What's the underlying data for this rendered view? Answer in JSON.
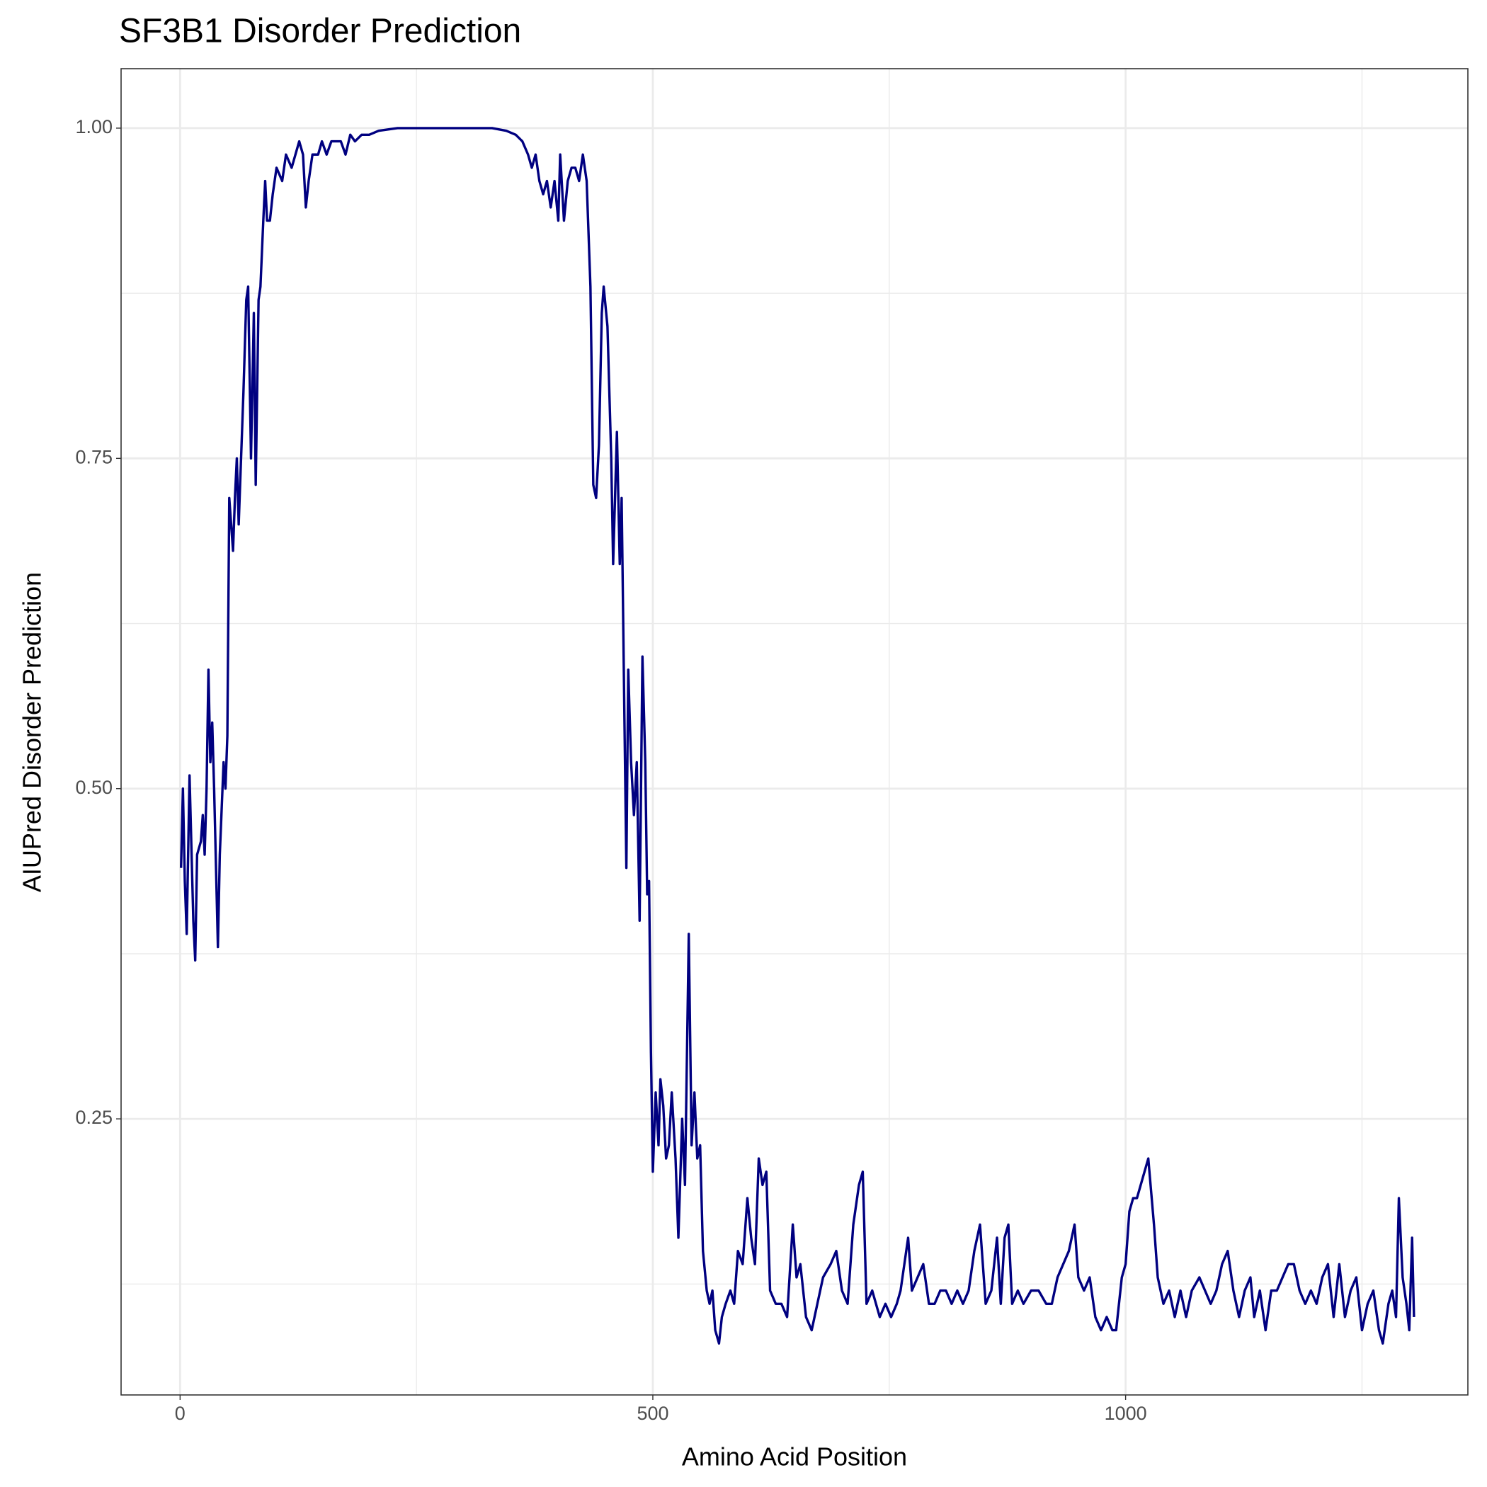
{
  "chart_data": {
    "type": "line",
    "title": "SF3B1 Disorder Prediction",
    "x_label": "Amino Acid Position",
    "y_label": "AIUPred Disorder Prediction",
    "color": "#000080",
    "grid": true,
    "minor_grid": true,
    "xlim": [
      -62.4,
      1362
    ],
    "ylim": [
      0.041,
      1.045
    ],
    "xticks": [
      0,
      500,
      1000
    ],
    "yticks": [
      {
        "value": 0.25,
        "label": "0.25"
      },
      {
        "value": 0.5,
        "label": "0.50"
      },
      {
        "value": 0.75,
        "label": "0.75"
      },
      {
        "value": 1,
        "label": "1.00"
      }
    ],
    "x": [
      1,
      3,
      5,
      7,
      10,
      14,
      16,
      18,
      22,
      24,
      26,
      28,
      30,
      32,
      34,
      36,
      40,
      42,
      46,
      48,
      50,
      52,
      54,
      56,
      58,
      60,
      62,
      64,
      67,
      70,
      72,
      75,
      78,
      80,
      83,
      85,
      88,
      90,
      92,
      95,
      98,
      102,
      108,
      112,
      118,
      122,
      126,
      130,
      133,
      136,
      140,
      146,
      150,
      155,
      160,
      166,
      170,
      175,
      180,
      185,
      192,
      200,
      210,
      230,
      260,
      300,
      330,
      345,
      355,
      362,
      368,
      372,
      376,
      380,
      384,
      388,
      392,
      396,
      400,
      402,
      406,
      410,
      414,
      418,
      422,
      426,
      430,
      434,
      437,
      440,
      443,
      446,
      448,
      452,
      456,
      458,
      462,
      465,
      467,
      470,
      472,
      474,
      477,
      480,
      483,
      486,
      489,
      492,
      494,
      496,
      498,
      500,
      503,
      506,
      508,
      511,
      514,
      517,
      520,
      524,
      527,
      531,
      534,
      538,
      541,
      544,
      547,
      550,
      553,
      557,
      560,
      563,
      566,
      570,
      573,
      577,
      582,
      586,
      590,
      595,
      600,
      604,
      608,
      612,
      616,
      620,
      624,
      630,
      636,
      642,
      648,
      652,
      656,
      662,
      668,
      674,
      680,
      688,
      694,
      700,
      706,
      712,
      718,
      722,
      726,
      732,
      740,
      746,
      752,
      758,
      762,
      766,
      770,
      774,
      780,
      786,
      792,
      798,
      804,
      810,
      816,
      822,
      828,
      834,
      840,
      846,
      852,
      858,
      864,
      868,
      872,
      876,
      880,
      886,
      892,
      900,
      908,
      916,
      922,
      928,
      934,
      940,
      946,
      950,
      956,
      962,
      968,
      974,
      980,
      986,
      990,
      996,
      1000,
      1004,
      1008,
      1012,
      1016,
      1020,
      1024,
      1030,
      1034,
      1040,
      1046,
      1052,
      1058,
      1064,
      1070,
      1078,
      1084,
      1090,
      1096,
      1102,
      1108,
      1114,
      1120,
      1126,
      1132,
      1136,
      1142,
      1148,
      1154,
      1160,
      1166,
      1172,
      1178,
      1184,
      1190,
      1196,
      1202,
      1208,
      1214,
      1220,
      1226,
      1232,
      1238,
      1244,
      1250,
      1256,
      1262,
      1268,
      1272,
      1278,
      1282,
      1286,
      1289,
      1293,
      1297,
      1300,
      1303,
      1305
    ],
    "values": [
      0.44,
      0.5,
      0.43,
      0.39,
      0.51,
      0.4,
      0.37,
      0.45,
      0.46,
      0.48,
      0.45,
      0.5,
      0.59,
      0.52,
      0.55,
      0.5,
      0.38,
      0.45,
      0.52,
      0.5,
      0.54,
      0.72,
      0.7,
      0.68,
      0.72,
      0.75,
      0.7,
      0.74,
      0.8,
      0.87,
      0.88,
      0.75,
      0.86,
      0.73,
      0.87,
      0.88,
      0.93,
      0.96,
      0.93,
      0.93,
      0.95,
      0.97,
      0.96,
      0.98,
      0.97,
      0.98,
      0.99,
      0.98,
      0.94,
      0.96,
      0.98,
      0.98,
      0.99,
      0.98,
      0.99,
      0.99,
      0.99,
      0.98,
      0.995,
      0.99,
      0.995,
      0.995,
      0.998,
      1.0,
      1.0,
      1.0,
      1.0,
      0.998,
      0.995,
      0.99,
      0.98,
      0.97,
      0.98,
      0.96,
      0.95,
      0.96,
      0.94,
      0.96,
      0.93,
      0.98,
      0.93,
      0.96,
      0.97,
      0.97,
      0.96,
      0.98,
      0.96,
      0.88,
      0.73,
      0.72,
      0.76,
      0.86,
      0.88,
      0.85,
      0.75,
      0.67,
      0.77,
      0.67,
      0.72,
      0.55,
      0.44,
      0.59,
      0.52,
      0.48,
      0.52,
      0.4,
      0.6,
      0.52,
      0.42,
      0.43,
      0.3,
      0.21,
      0.27,
      0.23,
      0.28,
      0.26,
      0.22,
      0.23,
      0.27,
      0.22,
      0.16,
      0.25,
      0.2,
      0.39,
      0.23,
      0.27,
      0.22,
      0.23,
      0.15,
      0.12,
      0.11,
      0.12,
      0.09,
      0.08,
      0.1,
      0.11,
      0.12,
      0.11,
      0.15,
      0.14,
      0.19,
      0.16,
      0.14,
      0.22,
      0.2,
      0.21,
      0.12,
      0.11,
      0.11,
      0.1,
      0.17,
      0.13,
      0.14,
      0.1,
      0.09,
      0.11,
      0.13,
      0.14,
      0.15,
      0.12,
      0.11,
      0.17,
      0.2,
      0.21,
      0.11,
      0.12,
      0.1,
      0.11,
      0.1,
      0.11,
      0.12,
      0.14,
      0.16,
      0.12,
      0.13,
      0.14,
      0.11,
      0.11,
      0.12,
      0.12,
      0.11,
      0.12,
      0.11,
      0.12,
      0.15,
      0.17,
      0.11,
      0.12,
      0.16,
      0.11,
      0.16,
      0.17,
      0.11,
      0.12,
      0.11,
      0.12,
      0.12,
      0.11,
      0.11,
      0.13,
      0.14,
      0.15,
      0.17,
      0.13,
      0.12,
      0.13,
      0.1,
      0.09,
      0.1,
      0.09,
      0.09,
      0.13,
      0.14,
      0.18,
      0.19,
      0.19,
      0.2,
      0.21,
      0.22,
      0.17,
      0.13,
      0.11,
      0.12,
      0.1,
      0.12,
      0.1,
      0.12,
      0.13,
      0.12,
      0.11,
      0.12,
      0.14,
      0.15,
      0.12,
      0.1,
      0.12,
      0.13,
      0.1,
      0.12,
      0.09,
      0.12,
      0.12,
      0.13,
      0.14,
      0.14,
      0.12,
      0.11,
      0.12,
      0.11,
      0.13,
      0.14,
      0.1,
      0.14,
      0.1,
      0.12,
      0.13,
      0.09,
      0.11,
      0.12,
      0.09,
      0.08,
      0.11,
      0.12,
      0.1,
      0.19,
      0.13,
      0.11,
      0.09,
      0.16,
      0.1
    ]
  }
}
